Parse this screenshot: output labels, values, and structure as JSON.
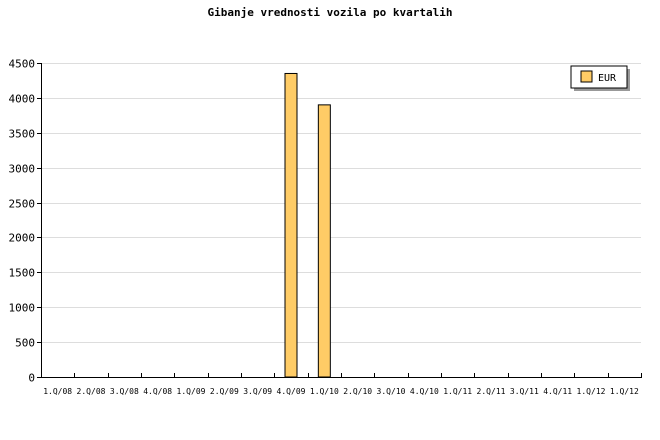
{
  "chart_data": {
    "type": "bar",
    "title": "Gibanje vrednosti vozila po kvartalih",
    "xlabel": "",
    "ylabel": "",
    "ylim": [
      0,
      4500
    ],
    "yticks": [
      0,
      500,
      1000,
      1500,
      2000,
      2500,
      3000,
      3500,
      4000,
      4500
    ],
    "grid": true,
    "legend_placement": "top-right",
    "categories": [
      "1.Q/08",
      "2.Q/08",
      "3.Q/08",
      "4.Q/08",
      "1.Q/09",
      "2.Q/09",
      "3.Q/09",
      "4.Q/09",
      "1.Q/10",
      "2.Q/10",
      "3.Q/10",
      "4.Q/10",
      "1.Q/11",
      "2.Q/11",
      "3.Q/11",
      "4.Q/11",
      "1.Q/12",
      "1.Q/12"
    ],
    "series": [
      {
        "name": "EUR",
        "color": "#ffcc66",
        "values": [
          0,
          0,
          0,
          0,
          0,
          0,
          0,
          4350,
          3900,
          0,
          0,
          0,
          0,
          0,
          0,
          0,
          0,
          0
        ]
      }
    ]
  }
}
